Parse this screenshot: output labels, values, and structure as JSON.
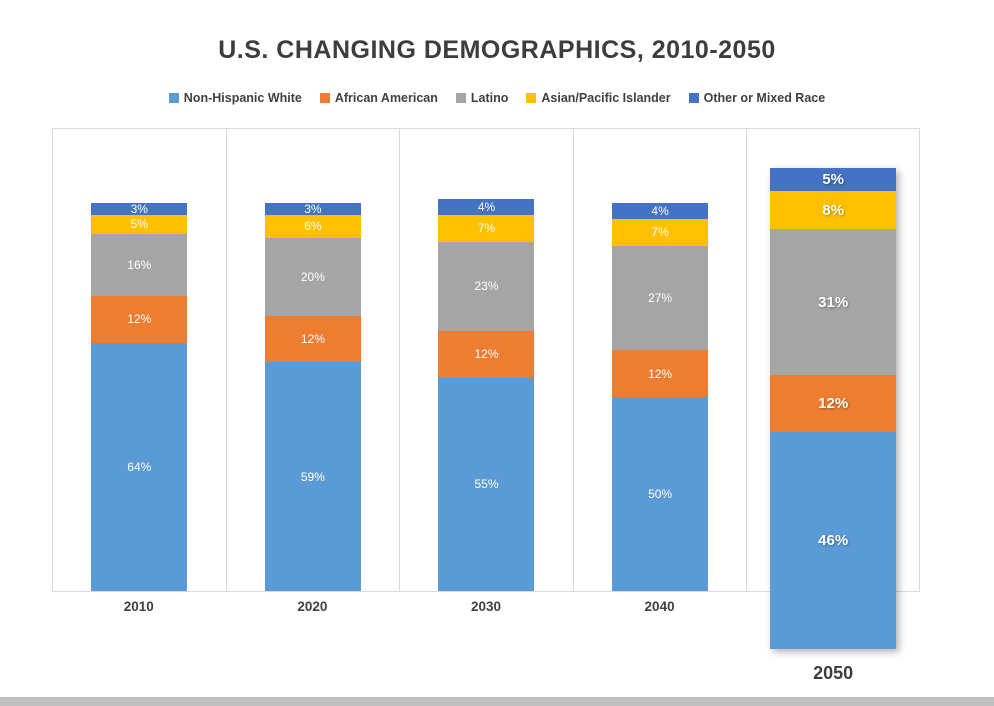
{
  "title": "U.S. CHANGING DEMOGRAPHICS, 2010-2050",
  "chart_data": {
    "type": "bar",
    "stacked": true,
    "title": "U.S. CHANGING DEMOGRAPHICS, 2010-2050",
    "categories": [
      "2010",
      "2020",
      "2030",
      "2040",
      "2050"
    ],
    "series": [
      {
        "name": "Non-Hispanic White",
        "color": "#5B9BD5",
        "values": [
          64,
          59,
          55,
          50,
          46
        ]
      },
      {
        "name": "African American",
        "color": "#ED7D31",
        "values": [
          12,
          12,
          12,
          12,
          12
        ]
      },
      {
        "name": "Latino",
        "color": "#A5A5A5",
        "values": [
          16,
          20,
          23,
          27,
          31
        ]
      },
      {
        "name": "Asian/Pacific Islander",
        "color": "#FFC000",
        "values": [
          5,
          6,
          7,
          7,
          8
        ]
      },
      {
        "name": "Other or Mixed Race",
        "color": "#4472C4",
        "values": [
          3,
          3,
          4,
          4,
          5
        ]
      }
    ],
    "labels_unit": "%",
    "emphasized_category": "2050",
    "legend_position": "top",
    "xlabel": "",
    "ylabel": "",
    "ylim": [
      0,
      100
    ],
    "grid": "category-separators",
    "label_color": "#ffffff",
    "gridline_color": "#d9d9d9"
  }
}
